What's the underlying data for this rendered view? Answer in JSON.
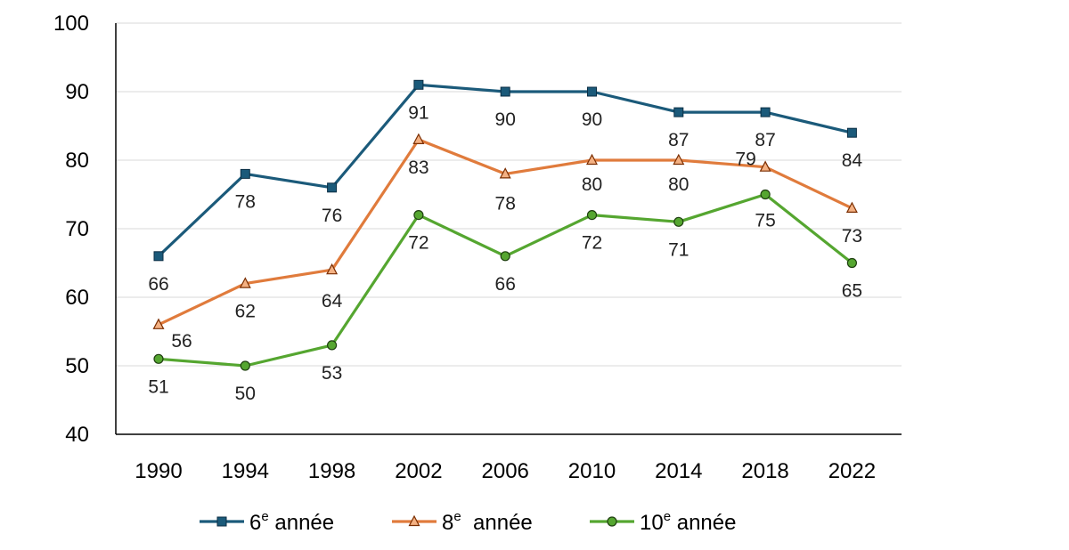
{
  "chart_data": {
    "type": "line",
    "categories": [
      "1990",
      "1994",
      "1998",
      "2002",
      "2006",
      "2010",
      "2014",
      "2018",
      "2022"
    ],
    "ylim": [
      40,
      100
    ],
    "yticks": [
      40,
      50,
      60,
      70,
      80,
      90,
      100
    ],
    "grid": true,
    "legend_position": "bottom",
    "series": [
      {
        "name_base": "6",
        "name_sup": "e",
        "name_rest": " année",
        "color": "#1b5a7a",
        "marker": "square",
        "values": [
          66,
          78,
          76,
          91,
          90,
          90,
          87,
          87,
          84
        ],
        "labels": [
          "66",
          "78",
          "76",
          "91",
          "90",
          "90",
          "87",
          "87",
          "84"
        ]
      },
      {
        "name_base": "8",
        "name_sup": "e",
        "name_rest": "  année",
        "color": "#e07b3c",
        "marker": "triangle",
        "values": [
          56,
          62,
          64,
          83,
          78,
          80,
          80,
          79,
          73
        ],
        "labels": [
          "56",
          "62",
          "64",
          "83",
          "78",
          "80",
          "80",
          "79",
          "73"
        ]
      },
      {
        "name_base": "10",
        "name_sup": "e",
        "name_rest": " année",
        "color": "#55a630",
        "marker": "circle",
        "values": [
          51,
          50,
          53,
          72,
          66,
          72,
          71,
          75,
          65
        ],
        "labels": [
          "51",
          "50",
          "53",
          "72",
          "66",
          "72",
          "71",
          "75",
          "65"
        ]
      }
    ]
  }
}
